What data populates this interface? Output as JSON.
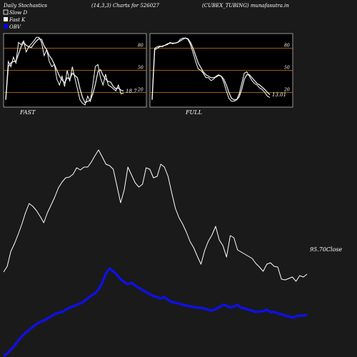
{
  "header": {
    "left": "Daily Stochastics",
    "params": "(14,3,3) Charts for 526027",
    "right": "(CUBEX_TUBING) munafasutra.in"
  },
  "legend": [
    {
      "label": "Slow  D",
      "color": "#1a1a1a"
    },
    {
      "label": "Fast K",
      "color": "#ffffff"
    },
    {
      "label": "OBV",
      "color": "#0000ff"
    }
  ],
  "panels": [
    {
      "name": "FAST",
      "last_value_label": "18.7"
    },
    {
      "name": "FULL",
      "last_value_label": "13.01"
    }
  ],
  "colors": {
    "background": "#1a1a1a",
    "panel_bg": "#000000",
    "guide": "#d08000",
    "obv": "#1010e0",
    "price": "#ffffff"
  },
  "chart_data": [
    {
      "type": "line",
      "title": "FAST",
      "yticks": [
        20,
        50,
        80
      ],
      "ylim": [
        0,
        100
      ],
      "guide_levels": [
        20,
        50,
        80
      ],
      "series": [
        {
          "name": "Fast K",
          "values": [
            10,
            62,
            55,
            68,
            60,
            88,
            85,
            90,
            75,
            82,
            86,
            90,
            95,
            95,
            88,
            70,
            78,
            62,
            55,
            58,
            38,
            30,
            42,
            28,
            50,
            35,
            55,
            40,
            25,
            10,
            5,
            3,
            15,
            8,
            30,
            55,
            58,
            40,
            30,
            45,
            30,
            28,
            25,
            22,
            30,
            18,
            19
          ]
        },
        {
          "name": "Slow  D",
          "values": [
            10,
            55,
            60,
            62,
            62,
            72,
            82,
            88,
            84,
            82,
            81,
            86,
            90,
            93,
            92,
            83,
            78,
            70,
            65,
            58,
            50,
            42,
            37,
            33,
            40,
            38,
            46,
            43,
            40,
            25,
            13,
            6,
            8,
            9,
            18,
            31,
            48,
            51,
            43,
            38,
            35,
            34,
            28,
            25,
            26,
            23,
            22
          ]
        }
      ]
    },
    {
      "type": "line",
      "title": "FULL",
      "yticks": [
        20,
        50,
        80
      ],
      "ylim": [
        0,
        100
      ],
      "guide_levels": [
        20,
        50,
        80
      ],
      "series": [
        {
          "name": "Fast K",
          "values": [
            10,
            80,
            82,
            83,
            82,
            84,
            85,
            88,
            86,
            87,
            88,
            92,
            94,
            94,
            92,
            85,
            74,
            62,
            52,
            50,
            46,
            40,
            40,
            36,
            38,
            42,
            44,
            42,
            34,
            22,
            12,
            8,
            8,
            10,
            18,
            32,
            46,
            48,
            42,
            36,
            32,
            30,
            26,
            24,
            20,
            15,
            13
          ]
        },
        {
          "name": "Slow  D",
          "values": [
            10,
            78,
            80,
            82,
            83,
            84,
            86,
            87,
            87,
            87,
            88,
            90,
            92,
            94,
            93,
            88,
            80,
            70,
            60,
            54,
            48,
            44,
            42,
            40,
            40,
            41,
            43,
            42,
            38,
            30,
            20,
            12,
            10,
            10,
            14,
            24,
            38,
            44,
            44,
            40,
            36,
            32,
            30,
            27,
            24,
            20,
            17
          ]
        }
      ]
    },
    {
      "type": "line",
      "series": [
        {
          "name": "Close",
          "values": [
            119,
            127,
            148,
            159,
            172,
            186,
            202,
            215,
            211,
            205,
            197,
            188,
            202,
            213,
            224,
            237,
            245,
            251,
            252,
            256,
            265,
            262,
            266,
            266,
            273,
            282,
            290,
            280,
            270,
            268,
            263,
            240,
            216,
            234,
            266,
            255,
            244,
            238,
            242,
            265,
            263,
            251,
            253,
            270,
            266,
            253,
            230,
            208,
            195,
            186,
            175,
            162,
            153,
            141,
            130,
            149,
            162,
            171,
            183,
            164,
            156,
            140,
            170,
            167,
            150,
            147,
            144,
            141,
            138,
            131,
            126,
            120,
            130,
            132,
            127,
            126,
            109,
            108,
            110,
            112,
            106,
            114,
            112,
            116
          ]
        },
        {
          "name": "OBV",
          "values": [
            1,
            5,
            10,
            16,
            23,
            29,
            34,
            38,
            42,
            46,
            49,
            51,
            54,
            57,
            60,
            62,
            63,
            66,
            69,
            71,
            73,
            75,
            78,
            82,
            86,
            89,
            95,
            104,
            117,
            124,
            120,
            115,
            109,
            105,
            102,
            104,
            100,
            97,
            94,
            91,
            88,
            85,
            84,
            82,
            84,
            80,
            77,
            76,
            75,
            73,
            72,
            71,
            70,
            69,
            69,
            68,
            66,
            65,
            67,
            70,
            73,
            72,
            69,
            71,
            73,
            69,
            68,
            66,
            65,
            63,
            64,
            64,
            66,
            63,
            63,
            61,
            60,
            58,
            57,
            55,
            57,
            58,
            58,
            59
          ]
        }
      ],
      "last_value_label": "95.70Close"
    }
  ]
}
